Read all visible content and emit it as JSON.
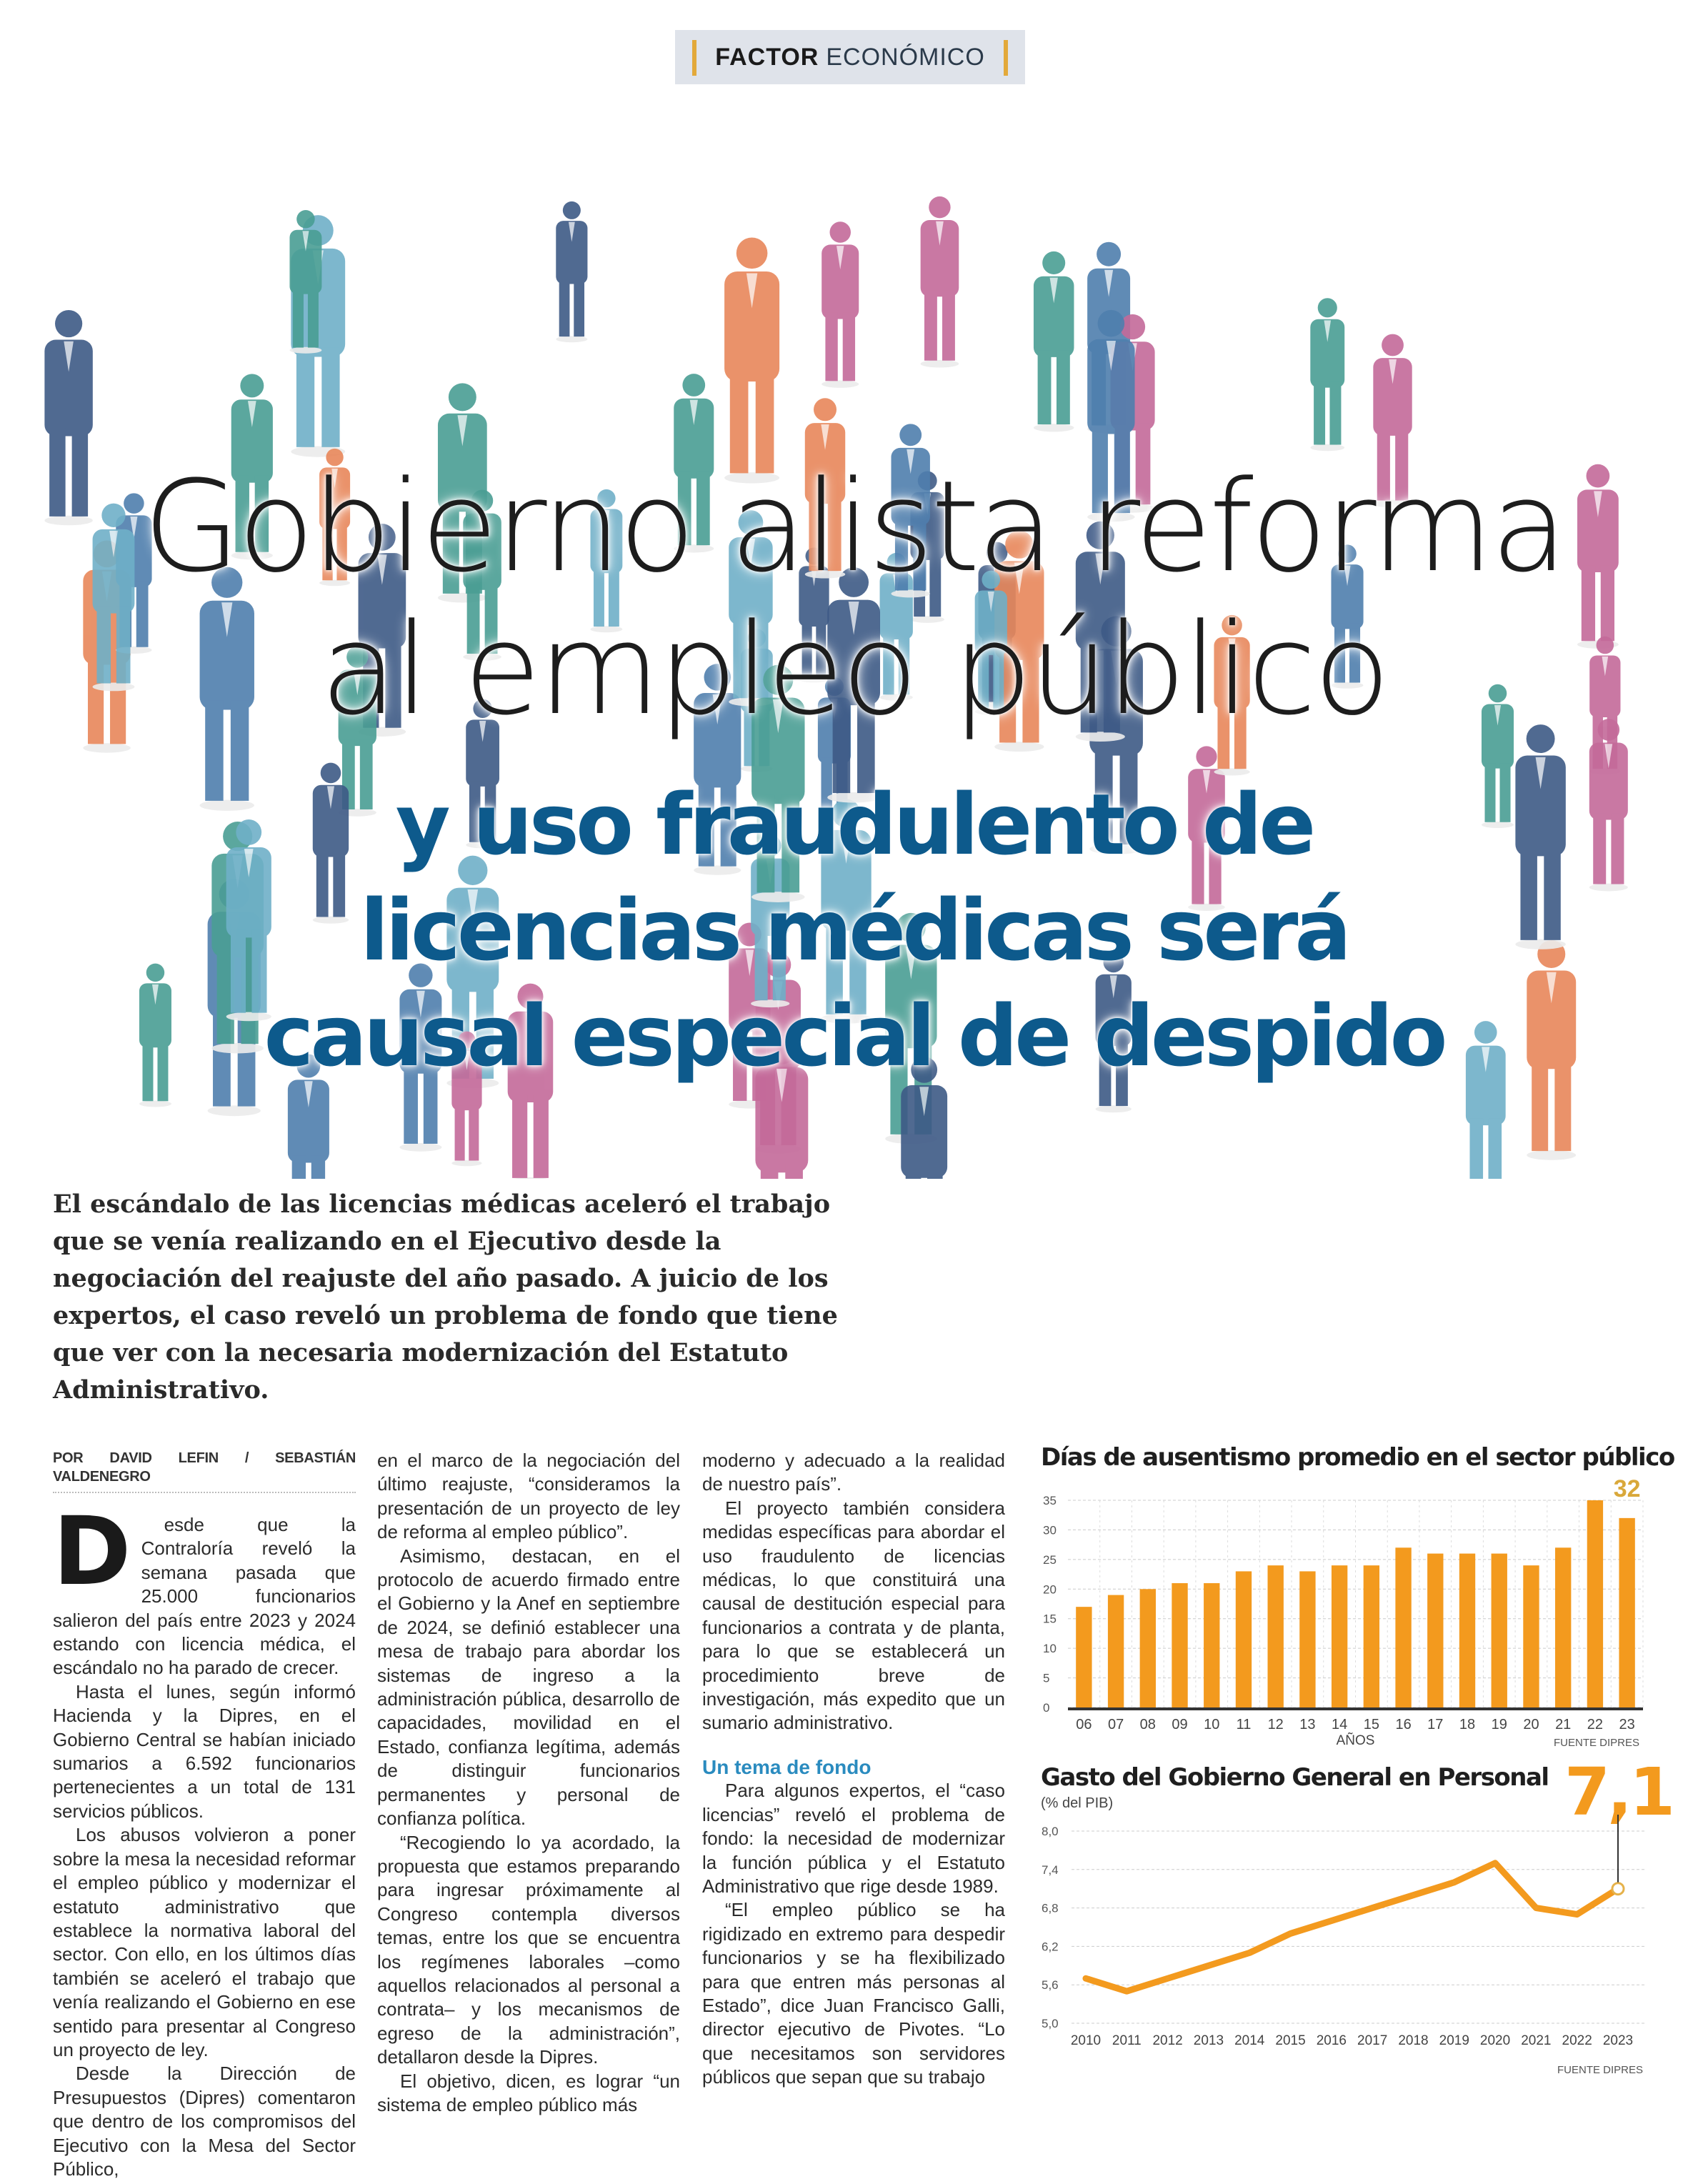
{
  "section_tag": {
    "bold": "FACTOR",
    "rest": "ECONÓMICO"
  },
  "headline": {
    "line1": "Gobierno alista reforma",
    "line2": "al empleo público",
    "sub1": "y uso fraudulento de",
    "sub2": "licencias médicas será",
    "sub3": "causal especial de despido"
  },
  "lead": "El escándalo de las licencias médicas aceleró el trabajo que se venía realizando en el Ejecutivo desde la negociación del reajuste del año pasado. A juicio de los expertos, el caso reveló un problema de fondo que tiene que ver con la necesaria modernización del Estatuto Administrativo.",
  "byline": "POR DAVID LEFIN / SEBASTIÁN VALDENEGRO",
  "article": {
    "drop_cap": "D",
    "col1": [
      "esde que la Contraloría reveló la semana pasada que 25.000 funcionarios salieron del país entre 2023 y 2024 estando con licencia médica, el escándalo no ha parado de crecer.",
      "Hasta el lunes, según informó Hacienda y la Dipres, en el Gobierno Central se habían iniciado sumarios a 6.592 funcionarios pertenecientes a un total de 131 servicios públicos.",
      "Los abusos volvieron a poner sobre la mesa la necesidad reformar el empleo público y modernizar el estatuto administrativo que establece la normativa laboral del sector. Con ello, en los últimos días también se aceleró el trabajo que venía realizando el Gobierno en ese sentido para presentar al Congreso un proyecto de ley.",
      "Desde la Dirección de Presupuestos (Dipres) comentaron que dentro de los compromisos del Ejecutivo con la Mesa del Sector Público,"
    ],
    "col2": [
      "en el marco de la negociación del último reajuste, “consideramos la presentación de un proyecto de ley de reforma al empleo público”.",
      "Asimismo, destacan, en el protocolo de acuerdo firmado entre el Gobierno y la Anef en septiembre de 2024, se definió establecer una mesa de trabajo para abordar los sistemas de ingreso a la administración pública, desarrollo de capacidades, movilidad en el Estado, confianza legítima, además de distinguir funcionarios permanentes y personal de confianza política.",
      "“Recogiendo lo ya acordado, la propuesta que estamos preparando para ingresar próximamente al Congreso contempla diversos temas, entre los que se encuentra los regímenes laborales –como aquellos relacionados al personal a contrata– y los mecanismos de egreso de la administración”, detallaron desde la Dipres.",
      "El objetivo, dicen, es lograr “un sistema de empleo público más"
    ],
    "col3a": [
      "moderno y adecuado a la realidad de nuestro país”.",
      "El proyecto también considera medidas específicas para abordar el uso fraudulento de licencias médicas, lo que constituirá una causal de destitución especial para funcionarios a contrata y de planta, para lo que se establecerá un procedimiento breve de investigación, más expedito que un sumario administrativo."
    ],
    "subhead": "Un tema de fondo",
    "col3b": [
      "Para algunos expertos, el “caso licencias” reveló el problema de fondo: la necesidad de modernizar la función pública y el Estatuto Administrativo que rige desde 1989.",
      "“El empleo público se ha rigidizado en extremo para despedir funcionarios y se ha flexibilizado para que entren más personas al Estado”, dice Juan Francisco Galli, director ejecutivo de Pivotes. “Lo que necesitamos son servidores públicos que sepan que su trabajo"
    ]
  },
  "colors": {
    "accent_orange": "#f39a1e",
    "headline_blue": "#0d5a8c",
    "subhead_blue": "#2a8bbf",
    "tag_bar": "#e3a93a"
  },
  "hero_illustration": {
    "content": "crowd of colored business-people silhouettes",
    "colors": [
      "#4a9e94",
      "#4f7fae",
      "#c46a9a",
      "#e8875a",
      "#3e5a86",
      "#6fb0c8"
    ]
  },
  "chart_data": [
    {
      "type": "bar",
      "title": "Días de ausentismo promedio en el sector público",
      "xlabel": "AÑOS",
      "source": "FUENTE DIPRES",
      "categories": [
        "06",
        "07",
        "08",
        "09",
        "10",
        "11",
        "12",
        "13",
        "14",
        "15",
        "16",
        "17",
        "18",
        "19",
        "20",
        "21",
        "22",
        "23"
      ],
      "values": [
        17,
        19,
        20,
        21,
        21,
        23,
        24,
        23,
        24,
        24,
        27,
        26,
        26,
        26,
        24,
        27,
        35,
        32
      ],
      "highlight_label": "32",
      "yticks": [
        "0",
        "5",
        "10",
        "15",
        "20",
        "25",
        "30",
        "35"
      ],
      "ylim": [
        0,
        35
      ],
      "grid": true,
      "color": "#f39a1e"
    },
    {
      "type": "line",
      "title": "Gasto del Gobierno General en Personal",
      "ylabel": "(% del PIB)",
      "source": "FUENTE DIPRES",
      "x": [
        "2010",
        "2011",
        "2012",
        "2013",
        "2014",
        "2015",
        "2016",
        "2017",
        "2018",
        "2019",
        "2020",
        "2021",
        "2022",
        "2023"
      ],
      "values": [
        5.7,
        5.5,
        5.7,
        5.9,
        6.1,
        6.4,
        6.6,
        6.8,
        7.0,
        7.2,
        7.5,
        6.8,
        6.7,
        7.1
      ],
      "highlight_label": "7,1",
      "yticks": [
        "5,0",
        "5,6",
        "6,2",
        "6,8",
        "7,4",
        "8,0"
      ],
      "ylim": [
        5.0,
        8.0
      ],
      "grid": true,
      "color": "#f39a1e"
    }
  ]
}
